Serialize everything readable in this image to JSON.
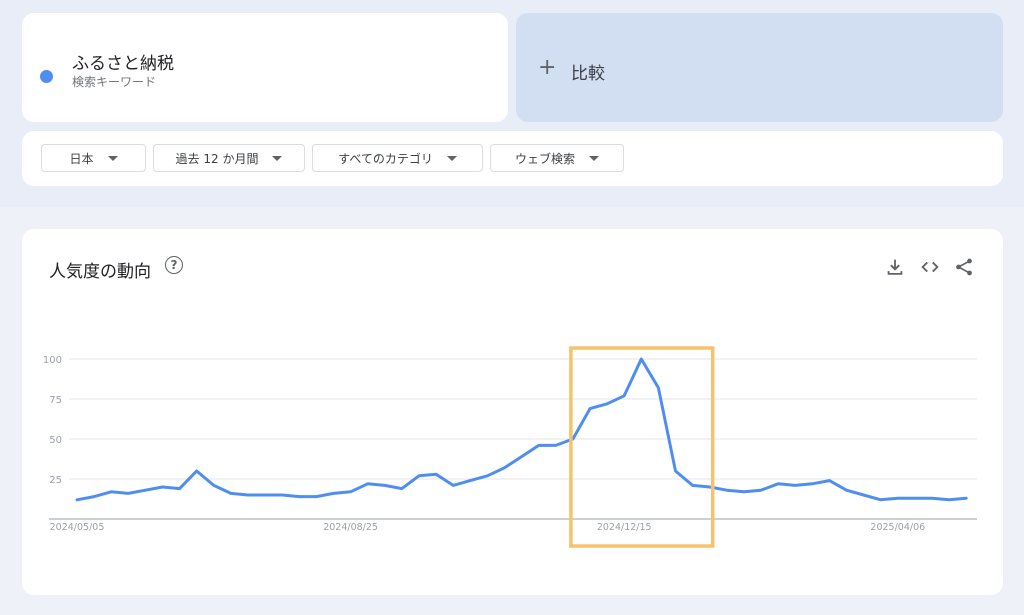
{
  "search_term": {
    "name": "ふるさと納税",
    "subtitle": "検索キーワード",
    "color": "#4f8ef0"
  },
  "compare": {
    "plus": "+",
    "label": "比較"
  },
  "filters": {
    "region": "日本",
    "period": "過去 12 か月間",
    "category": "すべてのカテゴリ",
    "search_type": "ウェブ検索"
  },
  "chart_panel": {
    "title": "人気度の動向",
    "help_icon": "?",
    "actions": [
      "download-icon",
      "embed-code-icon",
      "share-icon"
    ]
  },
  "highlight": {
    "color": "#f6c26b",
    "start_week": 29,
    "end_week": 37
  },
  "chart_data": {
    "type": "line",
    "ylim": [
      0,
      100
    ],
    "yticks": [
      25,
      50,
      75,
      100
    ],
    "x_tick_labels": [
      {
        "week": 0,
        "label": "2024/05/05"
      },
      {
        "week": 16,
        "label": "2024/08/25"
      },
      {
        "week": 32,
        "label": "2024/12/15"
      },
      {
        "week": 48,
        "label": "2025/04/06"
      }
    ],
    "series": [
      {
        "color": "#4f8ef0",
        "values": [
          12,
          14,
          17,
          16,
          18,
          20,
          19,
          30,
          21,
          16,
          15,
          15,
          15,
          14,
          14,
          16,
          17,
          22,
          21,
          19,
          27,
          28,
          21,
          24,
          27,
          32,
          39,
          46,
          46,
          50,
          69,
          72,
          77,
          100,
          82,
          30,
          21,
          20,
          18,
          17,
          18,
          22,
          21,
          22,
          24,
          18,
          15,
          12,
          13,
          13,
          13,
          12,
          13
        ]
      }
    ]
  }
}
